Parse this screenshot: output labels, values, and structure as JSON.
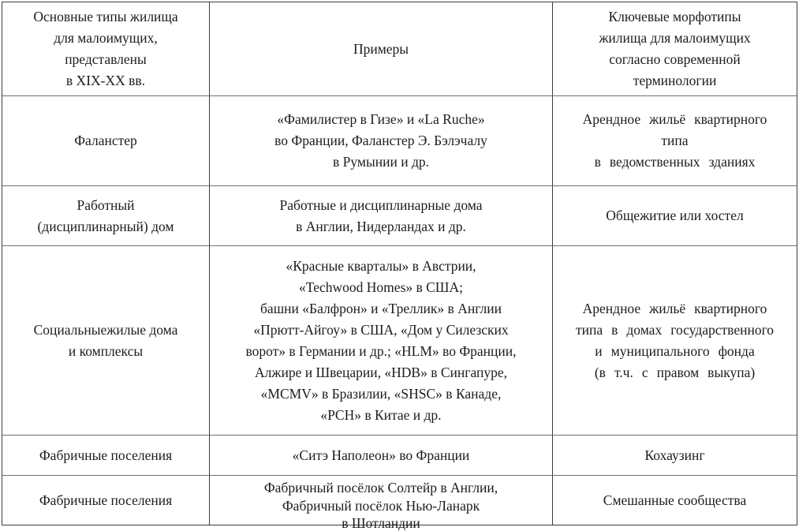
{
  "page": {
    "background": "#ffffff"
  },
  "table": {
    "outer_border_color": "#3c3c3c",
    "grid_line_color": "#6f6f6f",
    "text_color": "#1c1c1c",
    "header": {
      "types": "Основные типы жилища\nдля малоимущих,\nпредставлены\nв XIX-XX вв.",
      "examples": "Примеры",
      "morphotypes": "Ключевые морфотипы\nжилища для малоимущих\nсогласно современной\nтерминологии"
    },
    "rows": [
      {
        "type": "Фаланстер",
        "examples": "«Фамилистер в Гизе» и «La Ruche»\nво Франции, Фаланстер Э. Бэлэчалу\nв Румынии и др.",
        "morphotype": "Арендное жильё квартирного\nтипа\nв ведомственных зданиях"
      },
      {
        "type": "Работный\n(дисциплинарный) дом",
        "examples": "Работные и дисциплинарные дома\nв Англии, Нидерландах и др.",
        "morphotype": "Общежитие или хостел"
      },
      {
        "type": "Социальныежилые дома\nи комплексы",
        "examples": "«Красные кварталы» в Австрии,\n«Techwood Homes» в США;\nбашни «Балфрон» и «Треллик» в Англии\n«Прютт-Айгоу» в США, «Дом у Силезских\nворот» в Германии и др.; «HLM» во Франции,\nАлжире и Швецарии, «HDB» в Сингапуре,\n«MCMV» в Бразилии, «SHSC» в Канаде,\n«PCH» в Китае и др.",
        "morphotype": "Арендное жильё квартирного\nтипа в домах государственного\nи муниципального фонда\n(в т.ч. с правом выкупа)"
      },
      {
        "type": "Фабричные поселения",
        "examples": "«Ситэ Наполеон» во Франции",
        "morphotype": "Кохаузинг"
      },
      {
        "type": "Фабричные поселения",
        "examples": "Фабричный посёлок Солтейр в Англии,\nФабричный посёлок Нью-Ланарк\nв Шотландии",
        "morphotype": "Смешанные сообщества"
      }
    ]
  }
}
